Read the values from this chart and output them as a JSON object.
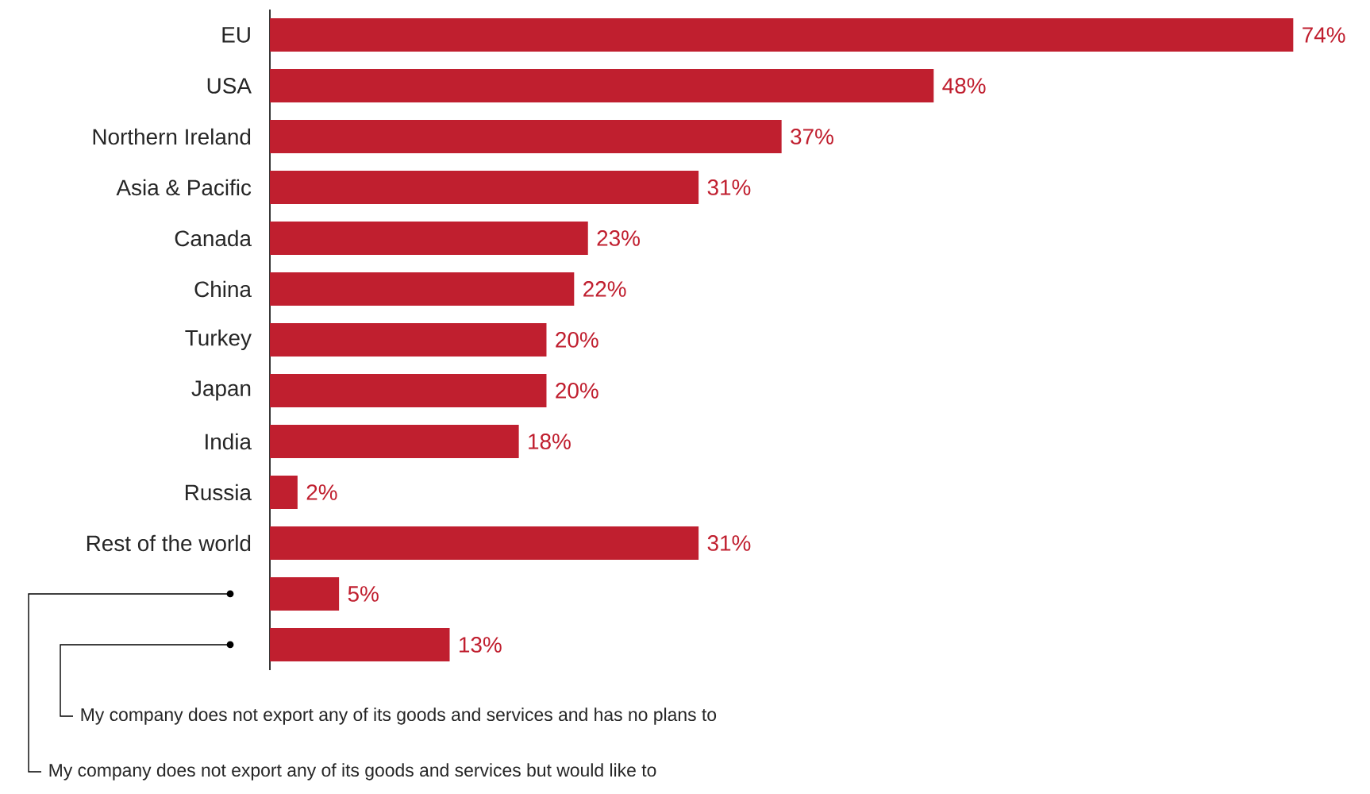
{
  "chart_data": {
    "type": "bar",
    "orientation": "horizontal",
    "color": "#c01f2f",
    "categories": [
      "EU",
      "USA",
      "Northern Ireland",
      "Asia & Pacific",
      "Canada",
      "China",
      "Turkey",
      "Japan",
      "India",
      "Russia",
      "Rest of the world",
      null,
      null
    ],
    "values": [
      74,
      48,
      37,
      31,
      23,
      22,
      20,
      20,
      18,
      2,
      31,
      5,
      13
    ],
    "value_labels": [
      "74%",
      "48%",
      "37%",
      "31%",
      "23%",
      "22%",
      "20%",
      "20%",
      "18%",
      "2%",
      "31%",
      "5%",
      "13%"
    ],
    "annotations": [
      "My company does not export any of its goods and services and has no plans to",
      "My company does not export any of its goods and services but would like to"
    ]
  }
}
